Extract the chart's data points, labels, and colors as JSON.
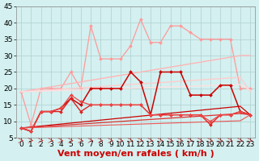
{
  "xlabel": "Vent moyen/en rafales ( km/h )",
  "background_color": "#d4f0f0",
  "grid_color": "#b0d0d0",
  "x_values": [
    0,
    1,
    2,
    3,
    4,
    5,
    6,
    7,
    8,
    9,
    10,
    11,
    12,
    13,
    14,
    15,
    16,
    17,
    18,
    19,
    20,
    21,
    22,
    23
  ],
  "ylim": [
    5,
    45
  ],
  "yticks": [
    5,
    10,
    15,
    20,
    25,
    30,
    35,
    40,
    45
  ],
  "tick_fontsize": 6.5,
  "xlabel_fontsize": 8,
  "series": [
    {
      "color": "#ff9999",
      "lw": 0.9,
      "marker": "D",
      "ms": 2.0,
      "data": [
        19,
        9,
        20,
        20,
        20,
        25,
        20,
        39,
        29,
        29,
        29,
        33,
        41,
        34,
        34,
        39,
        39,
        37,
        35,
        35,
        35,
        35,
        20,
        20
      ]
    },
    {
      "color": "#ffb5b5",
      "lw": 1.0,
      "marker": null,
      "ms": 0,
      "data": [
        19,
        19.5,
        20,
        20.5,
        21,
        21.5,
        22,
        22.5,
        23,
        23.5,
        24,
        24.5,
        25,
        25.5,
        26,
        26.5,
        27,
        27.5,
        28,
        28.5,
        29,
        29.5,
        30,
        30
      ]
    },
    {
      "color": "#ffcccc",
      "lw": 1.0,
      "marker": null,
      "ms": 0,
      "data": [
        19,
        19.2,
        19.4,
        19.6,
        19.8,
        20,
        20.2,
        20.4,
        20.6,
        20.8,
        21,
        21.2,
        21.4,
        21.6,
        21.8,
        22,
        22.2,
        22.4,
        22.6,
        22.8,
        23,
        23.2,
        23.4,
        19
      ]
    },
    {
      "color": "#ffe0e0",
      "lw": 1.0,
      "marker": null,
      "ms": 0,
      "data": [
        19,
        19.1,
        19.2,
        19.3,
        19.4,
        19.5,
        19.6,
        19.7,
        19.8,
        19.9,
        20,
        20.1,
        20.2,
        20.3,
        20.4,
        20.5,
        20.6,
        20.7,
        20.8,
        20.9,
        21,
        21.1,
        21.2,
        19.5
      ]
    },
    {
      "color": "#cc0000",
      "lw": 1.1,
      "marker": "D",
      "ms": 2.0,
      "data": [
        8,
        7,
        13,
        13,
        14,
        17,
        15,
        20,
        20,
        20,
        20,
        25,
        22,
        12,
        25,
        25,
        25,
        18,
        18,
        18,
        21,
        21,
        13,
        12
      ]
    },
    {
      "color": "#cc0000",
      "lw": 0.9,
      "marker": null,
      "ms": 0,
      "data": [
        8,
        8.3,
        8.6,
        8.9,
        9.2,
        9.5,
        9.8,
        10.1,
        10.4,
        10.7,
        11,
        11.3,
        11.6,
        11.9,
        12.2,
        12.5,
        12.8,
        13.1,
        13.4,
        13.7,
        14,
        14.3,
        14.6,
        12
      ]
    },
    {
      "color": "#dd3333",
      "lw": 0.9,
      "marker": null,
      "ms": 0,
      "data": [
        8,
        8.2,
        8.4,
        8.6,
        8.8,
        9.0,
        9.2,
        9.4,
        9.6,
        9.8,
        10,
        10.2,
        10.4,
        10.6,
        10.8,
        11,
        11.2,
        11.4,
        11.6,
        11.8,
        12,
        12.2,
        12.4,
        12
      ]
    },
    {
      "color": "#ee5555",
      "lw": 0.8,
      "marker": null,
      "ms": 0,
      "data": [
        8,
        8.1,
        8.2,
        8.3,
        8.4,
        8.5,
        8.6,
        8.7,
        8.8,
        8.9,
        9.0,
        9.1,
        9.2,
        9.3,
        9.4,
        9.5,
        9.6,
        9.7,
        9.8,
        9.9,
        10,
        10.1,
        10.2,
        12
      ]
    },
    {
      "color": "#dd2222",
      "lw": 1.0,
      "marker": "D",
      "ms": 2.0,
      "data": [
        8,
        7,
        13,
        13,
        13,
        17,
        13,
        15,
        15,
        15,
        15,
        15,
        15,
        12,
        12,
        12,
        12,
        12,
        12,
        9,
        12,
        12,
        13,
        12
      ]
    },
    {
      "color": "#ee4444",
      "lw": 0.9,
      "marker": "D",
      "ms": 2.0,
      "data": [
        8,
        7,
        13,
        13,
        14,
        18,
        16,
        15,
        15,
        15,
        15,
        15,
        15,
        12,
        12,
        12,
        12,
        12,
        12,
        10,
        12,
        12,
        13,
        12
      ]
    }
  ]
}
